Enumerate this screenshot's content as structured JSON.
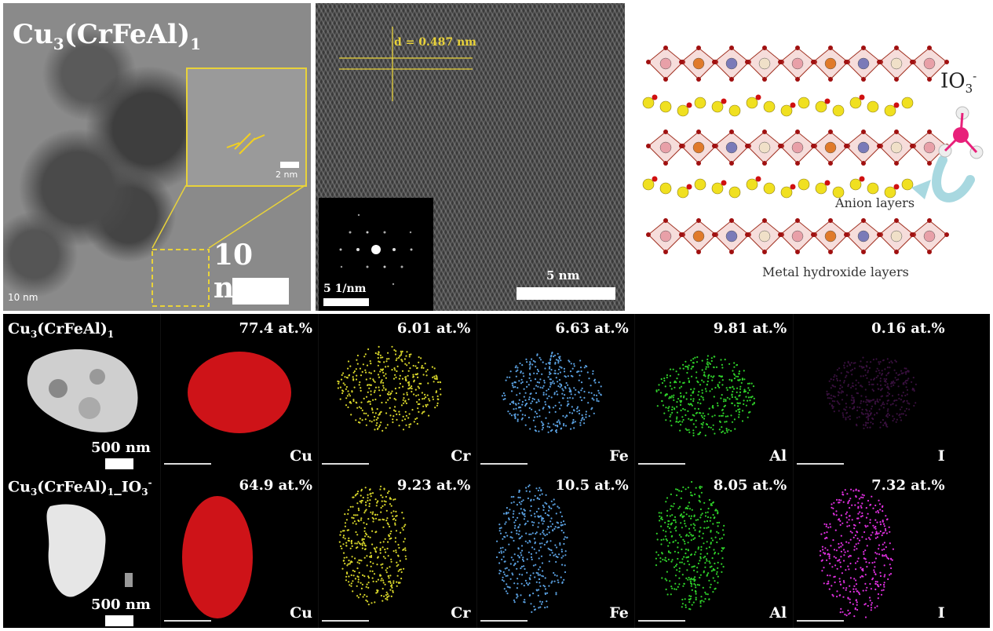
{
  "tem": {
    "formula_base": "Cu",
    "formula_sub1": "3",
    "formula_mid": "(CrFeAl)",
    "formula_sub2": "1",
    "scale_label": "10 nm",
    "corner_scale": "10 nm",
    "inset_scale": "2 nm"
  },
  "hrtem": {
    "d_spacing": "d = 0.487 nm",
    "scale_label": "5 nm",
    "saed_scale": "5 1/nm"
  },
  "structure": {
    "anion": "IO",
    "anion_sub": "3",
    "anion_sup": "-",
    "anion_layers": "Anion layers",
    "metal_layers": "Metal hydroxide layers"
  },
  "eds": {
    "rows": [
      {
        "label": "Cu3(CrFeAl)1",
        "scale": "500 nm",
        "maps": [
          {
            "el": "Cu",
            "at": "77.4 at.%",
            "color": "#e0151a"
          },
          {
            "el": "Cr",
            "at": "6.01 at.%",
            "color": "#d8d62a"
          },
          {
            "el": "Fe",
            "at": "6.63 at.%",
            "color": "#5aa0e0"
          },
          {
            "el": "Al",
            "at": "9.81 at.%",
            "color": "#2fd02a"
          },
          {
            "el": "I",
            "at": "0.16 at.%",
            "color": "#a030b0"
          }
        ]
      },
      {
        "label": "Cu3(CrFeAl)1_IO3-",
        "scale": "500 nm",
        "maps": [
          {
            "el": "Cu",
            "at": "64.9 at.%",
            "color": "#e0151a"
          },
          {
            "el": "Cr",
            "at": "9.23 at.%",
            "color": "#d8d62a"
          },
          {
            "el": "Fe",
            "at": "10.5 at.%",
            "color": "#5aa0e0"
          },
          {
            "el": "Al",
            "at": "8.05 at.%",
            "color": "#2fd02a"
          },
          {
            "el": "I",
            "at": "7.32 at.%",
            "color": "#e030e0"
          }
        ]
      }
    ]
  }
}
